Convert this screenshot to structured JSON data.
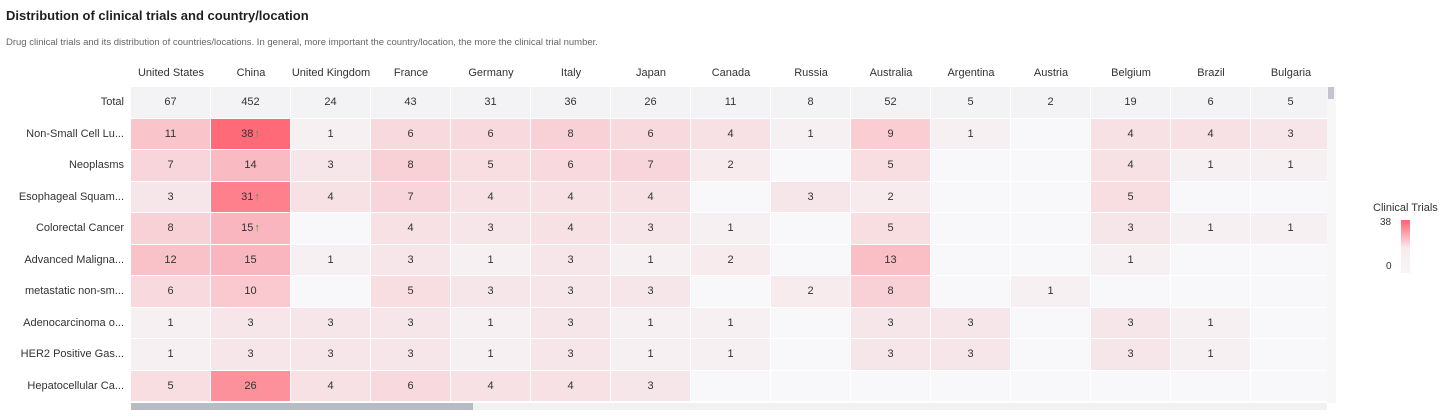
{
  "header": {
    "title": "Distribution of clinical trials and country/location",
    "subtitle": "Drug clinical trials and its distribution of countries/locations. In general, more important the country/location, the more the clinical trial number."
  },
  "colors": {
    "max": "#ff6a78",
    "min": "#f6f6f8",
    "arrow": "#3c9a2e",
    "total_row": "#f3f3f5"
  },
  "legend": {
    "title": "Clinical Trials",
    "max": "38",
    "min": "0"
  },
  "chart_data": {
    "type": "heatmap",
    "title": "Distribution of clinical trials and country/location",
    "columns": [
      "United States",
      "China",
      "United Kingdom",
      "France",
      "Germany",
      "Italy",
      "Japan",
      "Canada",
      "Russia",
      "Australia",
      "Argentina",
      "Austria",
      "Belgium",
      "Brazil",
      "Bulgaria"
    ],
    "total_label": "Total",
    "totals": [
      67,
      452,
      24,
      43,
      31,
      36,
      26,
      11,
      8,
      52,
      5,
      2,
      19,
      6,
      5
    ],
    "rows": [
      {
        "label": "Non-Small Cell Lu...",
        "values": [
          11,
          38,
          1,
          6,
          6,
          8,
          6,
          4,
          1,
          9,
          1,
          null,
          4,
          4,
          3
        ]
      },
      {
        "label": "Neoplasms",
        "values": [
          7,
          14,
          3,
          8,
          5,
          6,
          7,
          2,
          null,
          5,
          null,
          null,
          4,
          1,
          1
        ]
      },
      {
        "label": "Esophageal Squam...",
        "values": [
          3,
          31,
          4,
          7,
          4,
          4,
          4,
          null,
          3,
          2,
          null,
          null,
          5,
          null,
          null
        ]
      },
      {
        "label": "Colorectal Cancer",
        "values": [
          8,
          15,
          null,
          4,
          3,
          4,
          3,
          1,
          null,
          5,
          null,
          null,
          3,
          1,
          1
        ]
      },
      {
        "label": "Advanced Maligna...",
        "values": [
          12,
          15,
          1,
          3,
          1,
          3,
          1,
          2,
          null,
          13,
          null,
          null,
          1,
          null,
          null
        ]
      },
      {
        "label": "metastatic non-sm...",
        "values": [
          6,
          10,
          null,
          5,
          3,
          3,
          3,
          null,
          2,
          8,
          null,
          1,
          null,
          null,
          null
        ]
      },
      {
        "label": "Adenocarcinoma o...",
        "values": [
          1,
          3,
          3,
          3,
          1,
          3,
          1,
          1,
          null,
          3,
          3,
          null,
          3,
          1,
          null
        ]
      },
      {
        "label": "HER2 Positive Gas...",
        "values": [
          1,
          3,
          3,
          3,
          1,
          3,
          1,
          1,
          null,
          3,
          3,
          null,
          3,
          1,
          null
        ]
      },
      {
        "label": "Hepatocellular Ca...",
        "values": [
          5,
          26,
          4,
          6,
          4,
          4,
          3,
          null,
          null,
          null,
          null,
          null,
          null,
          null,
          null
        ]
      }
    ],
    "highlighted": [
      {
        "row": "Non-Small Cell Lu...",
        "column": "China"
      },
      {
        "row": "Esophageal Squam...",
        "column": "China"
      },
      {
        "row": "Colorectal Cancer",
        "column": "China"
      }
    ],
    "highlight_marker": "↑",
    "scale": {
      "min": 0,
      "max": 38
    }
  }
}
